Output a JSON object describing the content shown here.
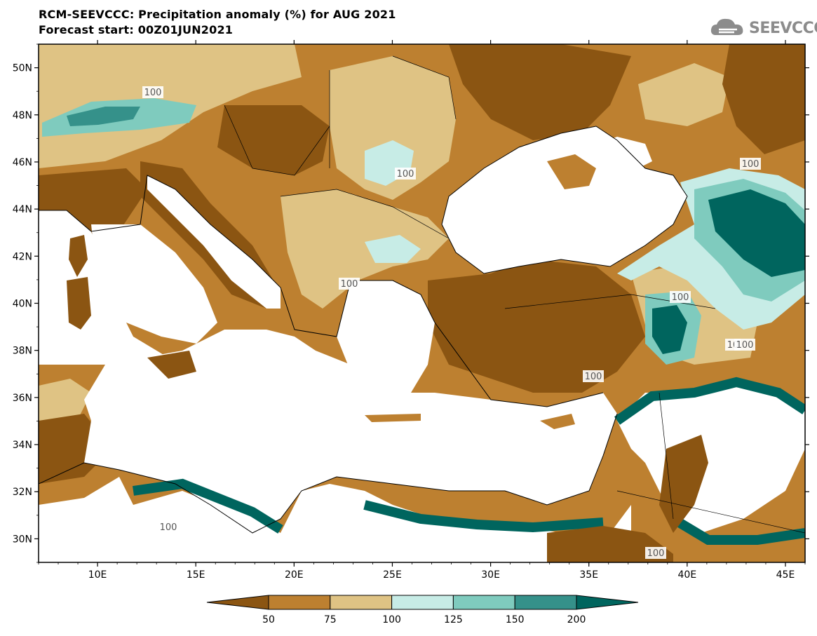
{
  "title": {
    "line1": "RCM-SEEVCCC: Precipitation anomaly (%) for AUG 2021",
    "line2": "Forecast start: 00Z01JUN2021"
  },
  "logo": {
    "text": "SEEVCCC",
    "icon": "cloud-icon"
  },
  "axes": {
    "lat_labels": [
      "50N",
      "48N",
      "46N",
      "44N",
      "42N",
      "40N",
      "38N",
      "36N",
      "34N",
      "32N",
      "30N"
    ],
    "lon_labels": [
      "10E",
      "15E",
      "20E",
      "25E",
      "30E",
      "35E",
      "40E",
      "45E"
    ]
  },
  "contour_labels": [
    "100",
    "100",
    "100",
    "100",
    "100",
    "100",
    "100",
    "100",
    "10⁄100",
    "100"
  ],
  "colorbar": {
    "ticks": [
      "50",
      "75",
      "100",
      "125",
      "150",
      "200"
    ],
    "colors": [
      "#8b5512",
      "#bd8030",
      "#dfc384",
      "#c7ece6",
      "#7fcbbe",
      "#35918a",
      "#00655e"
    ]
  },
  "chart_data": {
    "type": "heatmap",
    "title": "RCM-SEEVCCC: Precipitation anomaly (%) for AUG 2021",
    "subtitle": "Forecast start: 00Z01JUN2021",
    "lon_range": [
      7,
      46
    ],
    "lat_range": [
      29,
      51
    ],
    "levels": [
      50,
      75,
      100,
      125,
      150,
      200
    ],
    "level_colors": [
      "#8b5512",
      "#bd8030",
      "#dfc384",
      "#c7ece6",
      "#7fcbbe",
      "#35918a",
      "#00655e"
    ]
  }
}
